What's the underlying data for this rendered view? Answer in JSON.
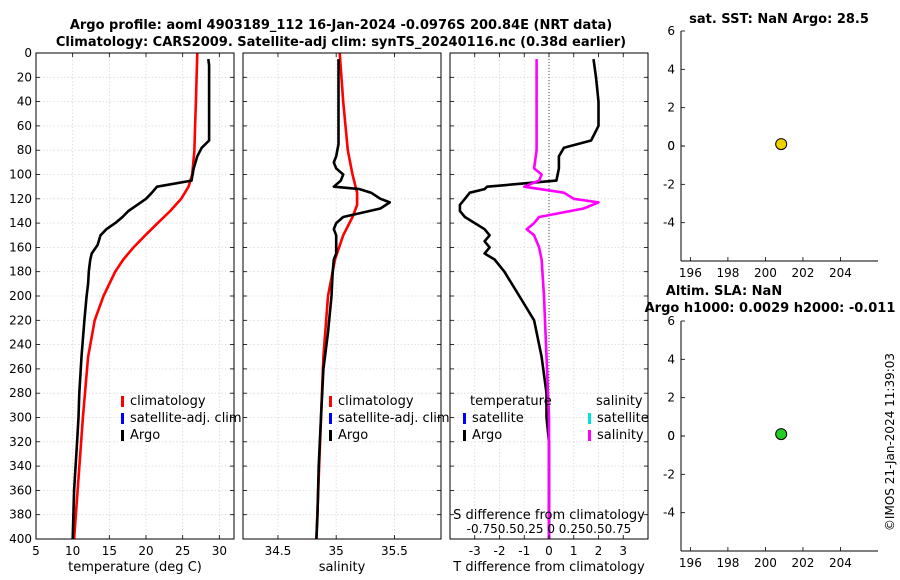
{
  "header": {
    "title_line1": "Argo profile: aoml 4903189_112 16-Jan-2024 -0.0976S 200.84E (NRT data)",
    "title_line2": "Climatology: CARS2009. Satellite-adj clim: synTS_20240116.nc (0.38d earlier)"
  },
  "watermark": "©IMOS 21-Jan-2024 11:39:03",
  "colors": {
    "climatology": "#ff0000",
    "satellite_adj": "#0000ff",
    "argo": "#000000",
    "sat_cyan": "#00e0e0",
    "salinity_magenta": "#ff00ff",
    "sst_marker": "#f0d000",
    "sla_marker": "#22cc22",
    "grid": "#d8d8d8"
  },
  "chart_data": [
    {
      "id": "temperature",
      "type": "line",
      "xlabel": "temperature (deg C)",
      "ylabel": "",
      "xlim": [
        5,
        32
      ],
      "ylim": [
        400,
        0
      ],
      "xticks": [
        5,
        10,
        15,
        20,
        25,
        30
      ],
      "yticks": [
        0,
        20,
        40,
        60,
        80,
        100,
        120,
        140,
        160,
        180,
        200,
        220,
        240,
        260,
        280,
        300,
        320,
        340,
        360,
        380,
        400
      ],
      "legend": {
        "position": "lower-right",
        "entries": [
          "climatology",
          "satellite-adj. clim",
          "Argo"
        ]
      },
      "series": [
        {
          "name": "climatology",
          "color": "#ff0000",
          "depth": [
            0,
            20,
            40,
            60,
            80,
            100,
            110,
            120,
            130,
            140,
            150,
            160,
            170,
            180,
            200,
            220,
            250,
            300,
            350,
            400
          ],
          "values": [
            27.0,
            26.9,
            26.8,
            26.7,
            26.6,
            26.3,
            25.8,
            24.8,
            23.3,
            21.6,
            19.9,
            18.3,
            16.9,
            15.8,
            14.2,
            13.0,
            12.1,
            11.4,
            10.8,
            10.2
          ]
        },
        {
          "name": "Argo",
          "color": "#000000",
          "depth": [
            5,
            10,
            20,
            40,
            60,
            72,
            78,
            85,
            95,
            105,
            110,
            115,
            120,
            125,
            130,
            135,
            140,
            145,
            150,
            158,
            165,
            170,
            175,
            180,
            190,
            200,
            220,
            250,
            280,
            300,
            320,
            340,
            360,
            380,
            400
          ],
          "values": [
            28.5,
            28.6,
            28.6,
            28.6,
            28.6,
            28.6,
            27.6,
            27.0,
            26.5,
            26.2,
            21.5,
            20.8,
            20.0,
            18.8,
            17.6,
            16.8,
            15.8,
            14.6,
            13.8,
            13.4,
            12.6,
            12.4,
            12.3,
            12.2,
            12.1,
            11.9,
            11.6,
            11.2,
            10.9,
            10.8,
            10.6,
            10.4,
            10.2,
            10.1,
            10.0
          ]
        }
      ]
    },
    {
      "id": "salinity",
      "type": "line",
      "xlabel": "salinity",
      "ylabel": "",
      "xlim": [
        34.2,
        35.9
      ],
      "ylim": [
        400,
        0
      ],
      "xticks": [
        34.5,
        35,
        35.5
      ],
      "xticklabels": [
        "34.5",
        "35",
        "35.5"
      ],
      "legend": {
        "position": "lower-right",
        "entries": [
          "climatology",
          "satellite-adj. clim",
          "Argo"
        ]
      },
      "series": [
        {
          "name": "climatology",
          "color": "#ff0000",
          "depth": [
            0,
            40,
            80,
            100,
            115,
            125,
            135,
            150,
            170,
            200,
            250,
            300,
            350,
            400
          ],
          "values": [
            35.03,
            35.06,
            35.1,
            35.14,
            35.18,
            35.18,
            35.14,
            35.06,
            34.99,
            34.93,
            34.89,
            34.87,
            34.85,
            34.83
          ]
        },
        {
          "name": "Argo",
          "color": "#000000",
          "depth": [
            5,
            20,
            40,
            60,
            75,
            85,
            90,
            95,
            100,
            105,
            110,
            112,
            115,
            120,
            123,
            128,
            135,
            140,
            145,
            150,
            158,
            165,
            170,
            180,
            200,
            230,
            260,
            300,
            340,
            380,
            400
          ],
          "values": [
            35.02,
            35.02,
            35.02,
            35.02,
            35.02,
            35.0,
            34.98,
            35.0,
            35.06,
            35.04,
            34.98,
            35.2,
            35.3,
            35.38,
            35.46,
            35.38,
            35.06,
            35.0,
            34.98,
            35.0,
            35.0,
            35.0,
            34.98,
            34.97,
            34.96,
            34.93,
            34.89,
            34.87,
            34.85,
            34.84,
            34.83
          ]
        }
      ]
    },
    {
      "id": "difference",
      "type": "line",
      "xlabel": "T difference from climatology",
      "top_xlabel": "S difference from climatology",
      "top_xticklabels": "-0.750.50.25 0  0.250.50.75",
      "ylabel": "",
      "xlim": [
        -4,
        4
      ],
      "ylim": [
        400,
        0
      ],
      "xticks": [
        -3,
        -2,
        -1,
        0,
        1,
        2,
        3
      ],
      "legend": {
        "position": "lower",
        "temperature_header": "temperature",
        "salinity_header": "salinity",
        "temperature_entries": [
          "satellite",
          "Argo"
        ],
        "salinity_entries": [
          "satellite",
          "salinity"
        ]
      },
      "series": [
        {
          "name": "T difference (Argo)",
          "color": "#000000",
          "depth": [
            5,
            20,
            40,
            60,
            72,
            78,
            85,
            95,
            105,
            110,
            112,
            115,
            120,
            125,
            130,
            135,
            140,
            145,
            150,
            155,
            160,
            165,
            170,
            180,
            200,
            220,
            250,
            280,
            300,
            320,
            340,
            360,
            380,
            400
          ],
          "values": [
            1.8,
            1.9,
            2.0,
            2.0,
            1.7,
            0.6,
            0.4,
            0.4,
            0.3,
            -2.5,
            -2.6,
            -3.2,
            -3.4,
            -3.6,
            -3.6,
            -3.4,
            -3.0,
            -2.6,
            -2.4,
            -2.6,
            -2.4,
            -2.6,
            -2.2,
            -1.8,
            -1.2,
            -0.6,
            -0.3,
            -0.1,
            -0.1,
            0.0,
            0.0,
            0.0,
            0.0,
            0.0
          ]
        },
        {
          "name": "S difference (Argo)",
          "color": "#ff00ff",
          "depth": [
            5,
            20,
            40,
            60,
            80,
            95,
            100,
            105,
            110,
            115,
            120,
            123,
            128,
            135,
            140,
            145,
            150,
            160,
            170,
            200,
            250,
            300,
            350,
            400
          ],
          "values": [
            -0.5,
            -0.5,
            -0.5,
            -0.5,
            -0.5,
            -0.6,
            -0.3,
            -0.4,
            -1.0,
            0.6,
            1.0,
            2.0,
            1.4,
            -0.4,
            -0.6,
            -0.9,
            -0.6,
            -0.4,
            -0.3,
            -0.2,
            -0.1,
            0.0,
            0.0,
            0.0
          ]
        }
      ]
    },
    {
      "id": "sst",
      "type": "scatter",
      "title": "sat. SST: NaN Argo: 28.5",
      "xlim": [
        195.5,
        206
      ],
      "ylim": [
        -6,
        6
      ],
      "xticks": [
        196,
        198,
        200,
        202,
        204
      ],
      "yticks": [
        -4,
        -2,
        0,
        2,
        4,
        6
      ],
      "points": [
        {
          "x": 200.84,
          "y": 0.1
        }
      ]
    },
    {
      "id": "sla",
      "type": "scatter",
      "title_line1": "Altim. SLA: NaN",
      "title_line2": "Argo h1000: 0.0029 h2000: -0.011",
      "xlim": [
        195.5,
        206
      ],
      "ylim": [
        -6,
        6
      ],
      "xticks": [
        196,
        198,
        200,
        202,
        204
      ],
      "yticks": [
        -4,
        -2,
        0,
        2,
        4,
        6
      ],
      "points": [
        {
          "x": 200.84,
          "y": 0.1
        }
      ]
    }
  ]
}
